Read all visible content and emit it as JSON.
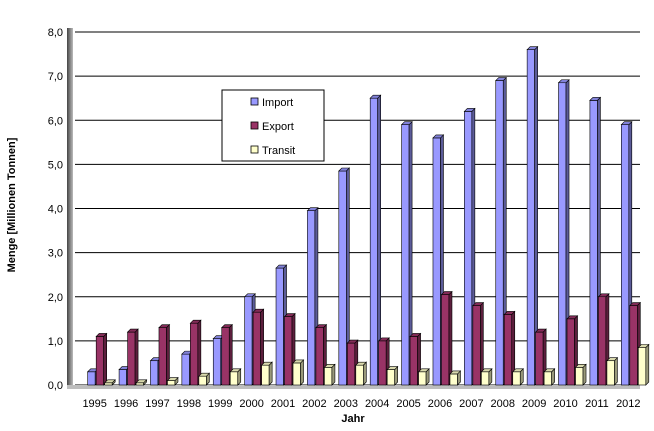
{
  "chart_data": {
    "type": "bar",
    "subtype": "3d-clustered",
    "title": "",
    "xlabel": "Jahr",
    "ylabel": "Menge [Millionen Tonnen]",
    "ylim": [
      0,
      8
    ],
    "ytick_labels": [
      "0,0",
      "1,0",
      "2,0",
      "3,0",
      "4,0",
      "5,0",
      "6,0",
      "7,0",
      "8,0"
    ],
    "grid": true,
    "legend_placement": "upper-left",
    "categories": [
      "1995",
      "1996",
      "1997",
      "1998",
      "1999",
      "2000",
      "2001",
      "2002",
      "2003",
      "2004",
      "2005",
      "2006",
      "2007",
      "2008",
      "2009",
      "2010",
      "2011",
      "2012"
    ],
    "series": [
      {
        "name": "Import",
        "color": "#9999ff",
        "values": [
          0.3,
          0.35,
          0.55,
          0.7,
          1.05,
          2.0,
          2.65,
          3.95,
          4.85,
          6.5,
          5.9,
          5.6,
          6.2,
          6.9,
          7.6,
          6.85,
          6.45,
          5.9
        ]
      },
      {
        "name": "Export",
        "color": "#993366",
        "values": [
          1.1,
          1.2,
          1.3,
          1.4,
          1.3,
          1.65,
          1.55,
          1.3,
          0.95,
          1.0,
          1.1,
          2.05,
          1.8,
          1.6,
          1.2,
          1.5,
          2.0,
          1.8
        ]
      },
      {
        "name": "Transit",
        "color": "#ffffcc",
        "values": [
          0.05,
          0.05,
          0.1,
          0.2,
          0.3,
          0.45,
          0.5,
          0.4,
          0.45,
          0.35,
          0.3,
          0.25,
          0.3,
          0.3,
          0.3,
          0.4,
          0.55,
          0.85
        ]
      }
    ]
  }
}
